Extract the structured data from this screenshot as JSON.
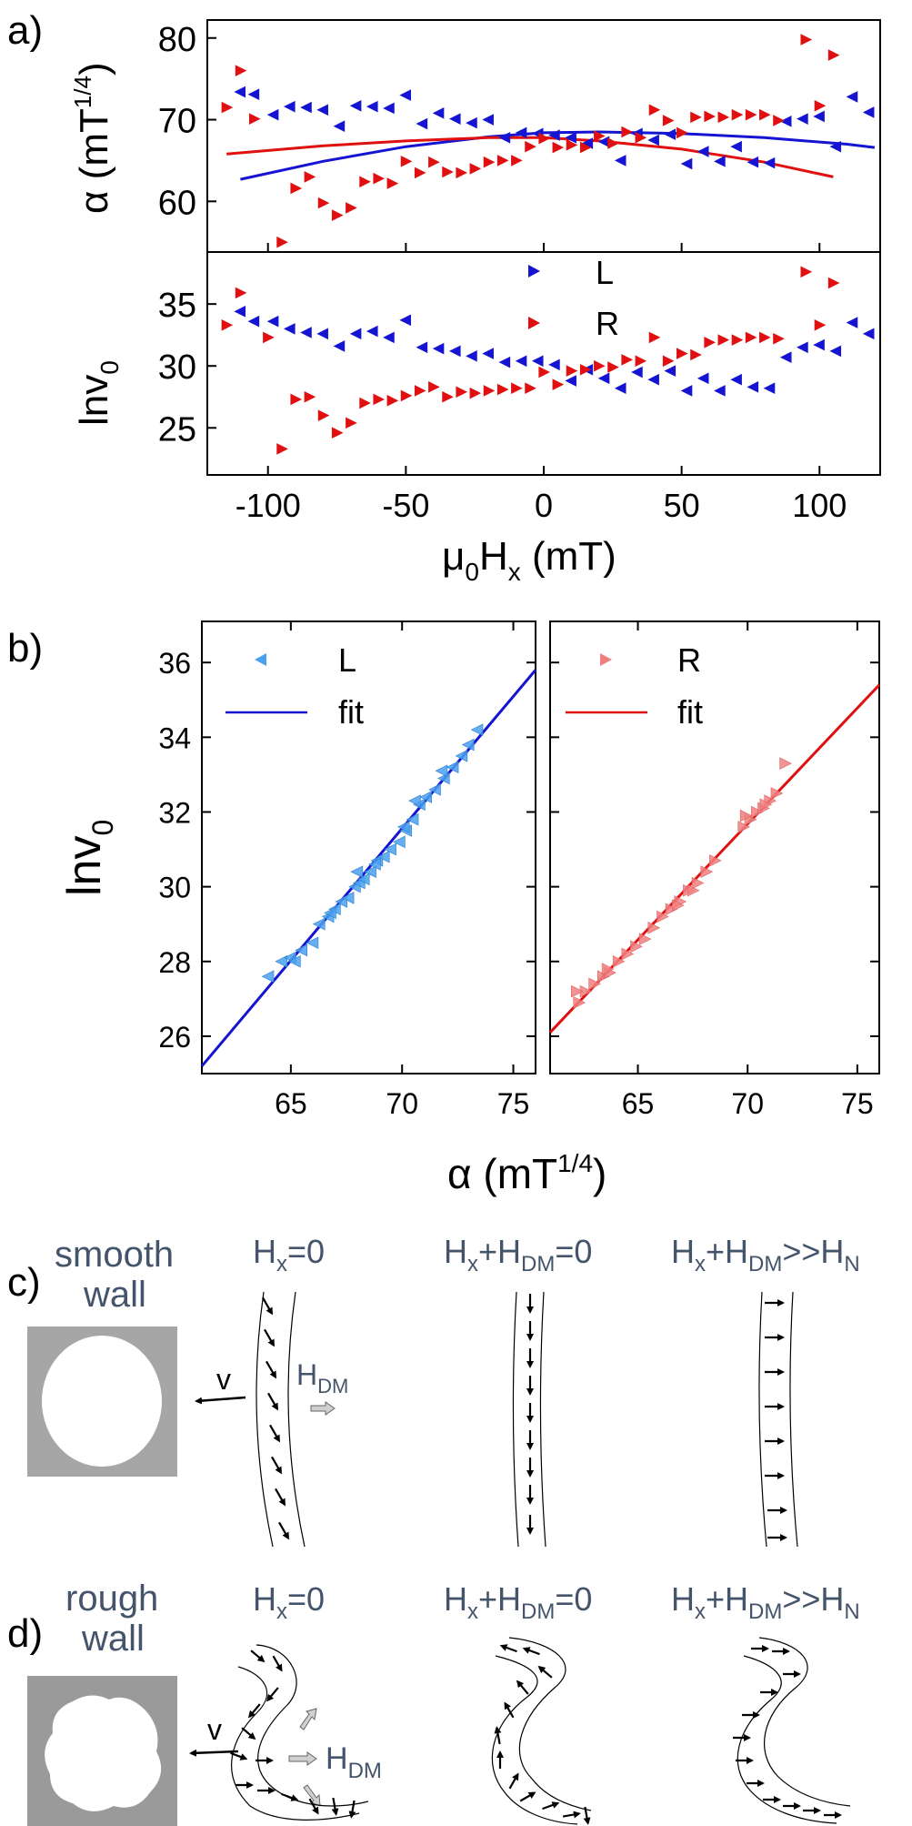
{
  "colors": {
    "L": "#1414d2",
    "R": "#e01010",
    "L_light": "#4aa0f0",
    "R_light": "#f08080",
    "text_blue": "#44546a"
  },
  "panel_a": {
    "label": "a)",
    "top": {
      "ylabel": "α (mT",
      "ylabel_sup": "1/4",
      "ylabel_end": ")"
    },
    "bottom": {
      "ylabel": "lnv",
      "ylabel_sub": "0"
    },
    "xlabel_pre": "μ",
    "xlabel_sub0": "0",
    "xlabel_H": "H",
    "xlabel_subx": "x",
    "xlabel_unit": " (mT)",
    "legend": {
      "L": "L",
      "R": "R"
    }
  },
  "panel_b": {
    "label": "b)",
    "ylabel": "lnv",
    "ylabel_sub": "0",
    "xlabel": "α (mT",
    "xlabel_sup": "1/4",
    "xlabel_end": ")",
    "left_legend": {
      "points": "L",
      "line": "fit"
    },
    "right_legend": {
      "points": "R",
      "line": "fit"
    }
  },
  "panel_c": {
    "label": "c)",
    "title_line1": "smooth",
    "title_line2": "wall",
    "v_label": "v",
    "hdm_H": "H",
    "hdm_sub": "DM",
    "col1": {
      "H": "H",
      "sub": "x",
      "rest": "=0"
    },
    "col2": {
      "H": "H",
      "sub": "x",
      "plus": "+H",
      "sub2": "DM",
      "rest": "=0"
    },
    "col3": {
      "H": "H",
      "sub": "x",
      "plus": "+H",
      "sub2": "DM",
      "mid": ">>H",
      "sub3": "N"
    }
  },
  "panel_d": {
    "label": "d)",
    "title_line1": "rough",
    "title_line2": "wall",
    "v_label": "v",
    "hdm_H": "H",
    "hdm_sub": "DM",
    "col1": {
      "H": "H",
      "sub": "x",
      "rest": "=0"
    },
    "col2": {
      "H": "H",
      "sub": "x",
      "plus": "+H",
      "sub2": "DM",
      "rest": "=0"
    },
    "col3": {
      "H": "H",
      "sub": "x",
      "plus": "+H",
      "sub2": "DM",
      "mid": ">>H",
      "sub3": "N"
    }
  },
  "chart_data": [
    {
      "type": "scatter",
      "name_id": "a-top",
      "xlim": [
        -122,
        122
      ],
      "ylim": [
        53.8,
        82.2
      ],
      "x_ticks": [
        -100,
        -50,
        0,
        50,
        100
      ],
      "y_ticks": [
        60,
        70,
        80
      ],
      "series": [
        {
          "name": "L",
          "x": [
            -110,
            -105,
            -98,
            -92,
            -86,
            -80,
            -74,
            -68,
            -62,
            -56,
            -50,
            -44,
            -38,
            -32,
            -26,
            -20,
            -14,
            -8,
            -2,
            4,
            10,
            16,
            22,
            28,
            34,
            40,
            46,
            52,
            58,
            64,
            70,
            76,
            82,
            88,
            94,
            100,
            106,
            112,
            118
          ],
          "y": [
            73.4,
            73.1,
            70.6,
            71.6,
            71.5,
            71.2,
            69.2,
            71.7,
            71.6,
            71.4,
            73.0,
            69.5,
            70.8,
            70.1,
            69.6,
            70.0,
            67.8,
            68.4,
            68.3,
            68.1,
            67.8,
            67.1,
            67.3,
            65.0,
            68.3,
            67.5,
            68.2,
            64.6,
            66.1,
            64.9,
            66.7,
            64.8,
            64.7,
            69.8,
            70.1,
            70.4,
            66.7,
            72.8,
            70.9
          ]
        },
        {
          "name": "R",
          "x": [
            -115,
            -110,
            -105,
            -95,
            -90,
            -85,
            -80,
            -75,
            -70,
            -65,
            -60,
            -55,
            -50,
            -45,
            -40,
            -35,
            -30,
            -25,
            -20,
            -15,
            -10,
            -5,
            0,
            5,
            10,
            15,
            20,
            25,
            30,
            35,
            40,
            45,
            50,
            55,
            60,
            65,
            70,
            75,
            80,
            85,
            95,
            100,
            105
          ],
          "y": [
            71.5,
            76.0,
            70.1,
            55.0,
            61.6,
            63.0,
            59.8,
            58.3,
            59.2,
            62.4,
            62.8,
            62.2,
            64.9,
            63.5,
            64.8,
            63.6,
            63.5,
            64.0,
            64.8,
            65.0,
            65.0,
            66.7,
            67.7,
            66.6,
            66.9,
            66.6,
            68.0,
            67.1,
            68.5,
            67.8,
            71.2,
            69.9,
            68.4,
            70.3,
            70.4,
            70.3,
            70.6,
            70.6,
            70.6,
            69.9,
            79.8,
            71.7,
            77.9
          ]
        }
      ],
      "fits": [
        {
          "name": "L",
          "x": [
            -110,
            -80,
            -50,
            -20,
            0,
            20,
            50,
            80,
            110,
            120
          ],
          "y": [
            62.7,
            64.9,
            66.7,
            67.9,
            68.4,
            68.5,
            68.3,
            67.8,
            67.0,
            66.6
          ]
        },
        {
          "name": "R",
          "x": [
            -115,
            -80,
            -50,
            -20,
            0,
            20,
            50,
            80,
            105
          ],
          "y": [
            65.8,
            66.8,
            67.4,
            67.8,
            67.8,
            67.4,
            66.4,
            64.8,
            63.0
          ]
        }
      ]
    },
    {
      "type": "scatter",
      "name_id": "a-bottom",
      "xlim": [
        -122,
        122
      ],
      "ylim": [
        21.2,
        39.2
      ],
      "x_ticks": [
        -100,
        -50,
        0,
        50,
        100
      ],
      "y_ticks": [
        25,
        30,
        35
      ],
      "series": [
        {
          "name": "L",
          "x": [
            -110,
            -105,
            -98,
            -92,
            -86,
            -80,
            -74,
            -68,
            -62,
            -56,
            -50,
            -44,
            -38,
            -32,
            -26,
            -20,
            -14,
            -8,
            -2,
            4,
            10,
            16,
            22,
            28,
            34,
            40,
            46,
            52,
            58,
            64,
            70,
            76,
            82,
            88,
            94,
            100,
            106,
            112,
            118
          ],
          "y": [
            34.4,
            33.6,
            33.6,
            33.0,
            32.7,
            32.6,
            31.6,
            32.6,
            32.8,
            32.3,
            33.7,
            31.5,
            31.4,
            31.2,
            30.8,
            31.0,
            30.3,
            30.4,
            30.4,
            30.1,
            28.8,
            29.7,
            29.0,
            28.2,
            29.5,
            28.9,
            29.6,
            28.0,
            29.0,
            28.0,
            28.9,
            28.3,
            28.2,
            30.7,
            31.5,
            31.7,
            31.2,
            33.5,
            32.6
          ]
        },
        {
          "name": "R",
          "x": [
            -115,
            -110,
            -100,
            -95,
            -90,
            -85,
            -80,
            -75,
            -70,
            -65,
            -60,
            -55,
            -50,
            -45,
            -40,
            -35,
            -30,
            -25,
            -20,
            -15,
            -10,
            -5,
            0,
            5,
            10,
            15,
            20,
            25,
            30,
            35,
            40,
            45,
            50,
            55,
            60,
            65,
            70,
            75,
            80,
            85,
            95,
            100,
            105
          ],
          "y": [
            33.3,
            35.9,
            32.3,
            23.3,
            27.3,
            27.5,
            26.0,
            24.6,
            25.4,
            27.0,
            27.3,
            27.2,
            27.6,
            28.0,
            28.3,
            27.5,
            27.9,
            27.8,
            28.0,
            28.1,
            28.2,
            28.2,
            29.5,
            28.5,
            29.6,
            29.7,
            30.0,
            29.9,
            30.5,
            30.4,
            32.3,
            30.4,
            31.0,
            30.9,
            31.9,
            32.1,
            32.1,
            32.3,
            32.3,
            32.2,
            37.6,
            33.3,
            36.7
          ]
        }
      ]
    },
    {
      "type": "scatter",
      "name_id": "b-left",
      "xlim": [
        61,
        76
      ],
      "ylim": [
        25,
        37.1
      ],
      "x_ticks": [
        65,
        70,
        75
      ],
      "y_ticks": [
        26,
        28,
        30,
        32,
        34,
        36
      ],
      "series": [
        {
          "name": "L",
          "x": [
            64.0,
            64.6,
            65.0,
            65.5,
            66.0,
            66.3,
            66.7,
            67.0,
            67.3,
            67.6,
            67.9,
            68.1,
            68.3,
            68.6,
            68.9,
            69.2,
            69.5,
            69.9,
            70.2,
            70.5,
            70.8,
            71.1,
            71.5,
            71.9,
            72.3,
            72.7,
            73.0,
            73.4,
            68.0,
            68.8,
            70.6,
            66.8,
            65.2,
            70.1,
            71.8
          ],
          "y": [
            27.6,
            28.0,
            28.1,
            28.3,
            28.5,
            29.0,
            29.2,
            29.4,
            29.6,
            29.7,
            30.0,
            30.1,
            30.2,
            30.4,
            30.7,
            30.8,
            31.0,
            31.2,
            31.5,
            31.8,
            32.2,
            32.4,
            32.6,
            32.9,
            33.2,
            33.5,
            33.8,
            34.2,
            30.4,
            30.6,
            32.3,
            29.3,
            28.0,
            31.6,
            33.1
          ]
        }
      ],
      "fits": [
        {
          "name": "fit",
          "x": [
            61,
            76
          ],
          "y": [
            25.2,
            35.8
          ]
        }
      ]
    },
    {
      "type": "scatter",
      "name_id": "b-right",
      "xlim": [
        61,
        76
      ],
      "ylim": [
        25,
        37.1
      ],
      "x_ticks": [
        65,
        70,
        75
      ],
      "y_ticks": [
        26,
        28,
        30,
        32,
        34,
        36
      ],
      "series": [
        {
          "name": "R",
          "x": [
            62.3,
            62.6,
            63.0,
            63.4,
            63.7,
            64.1,
            64.5,
            64.9,
            65.3,
            65.7,
            66.1,
            66.5,
            66.9,
            67.3,
            67.7,
            68.1,
            68.5,
            69.8,
            70.1,
            70.4,
            70.7,
            71.0,
            71.3,
            71.7,
            62.2,
            63.6,
            66.8,
            67.5,
            69.9,
            70.8
          ],
          "y": [
            26.9,
            27.2,
            27.4,
            27.6,
            27.7,
            28.0,
            28.2,
            28.4,
            28.6,
            28.9,
            29.2,
            29.4,
            29.6,
            29.9,
            30.1,
            30.4,
            30.7,
            31.6,
            31.8,
            32.0,
            32.1,
            32.3,
            32.5,
            33.3,
            27.2,
            27.8,
            29.5,
            29.9,
            31.9,
            32.2
          ]
        }
      ],
      "fits": [
        {
          "name": "fit",
          "x": [
            61,
            76
          ],
          "y": [
            26.1,
            35.4
          ]
        }
      ]
    }
  ]
}
